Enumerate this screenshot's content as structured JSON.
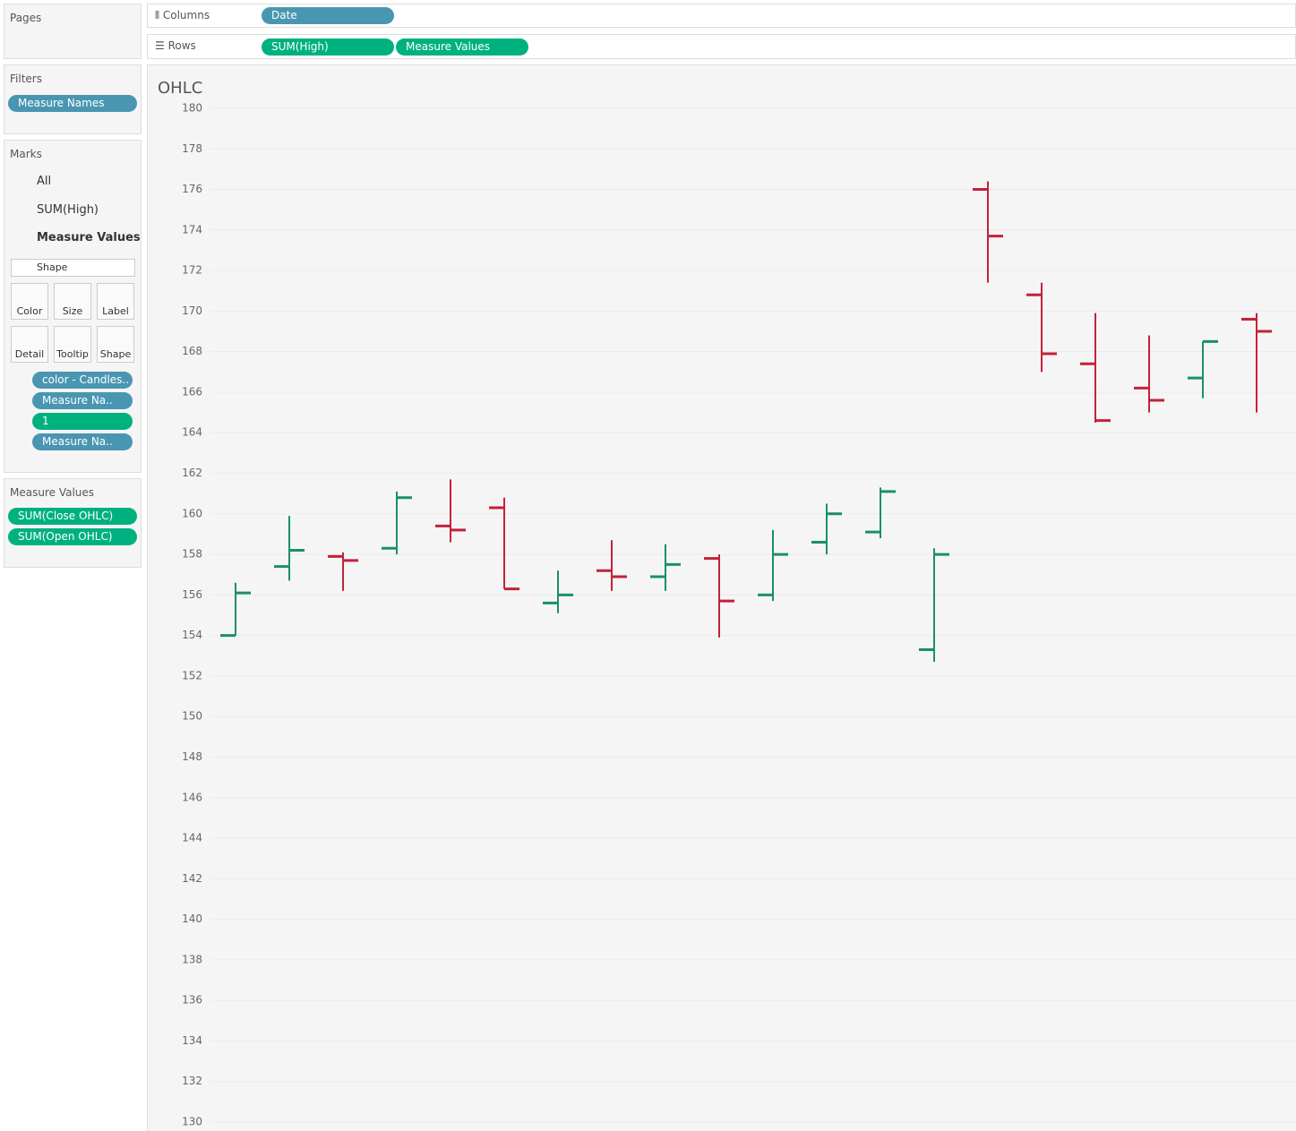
{
  "shelves": {
    "pages": "Pages",
    "columns_label": "Columns",
    "columns": [
      "Date"
    ],
    "rows_label": "Rows",
    "rows": [
      "SUM(High)",
      "Measure Values"
    ]
  },
  "filters": {
    "title": "Filters",
    "pills": [
      "Measure Names"
    ]
  },
  "marks": {
    "title": "Marks",
    "layers": [
      "All",
      "SUM(High)",
      "Measure Values"
    ],
    "mark_type": "Shape",
    "buttons": [
      "Color",
      "Size",
      "Label",
      "Detail",
      "Tooltip",
      "Shape"
    ],
    "pills": [
      "color - Candles..",
      "Measure Na..",
      "1",
      "Measure Na.."
    ]
  },
  "measure_values": {
    "title": "Measure Values",
    "pills": [
      "SUM(Close OHLC)",
      "SUM(Open OHLC)"
    ]
  },
  "chart_data": {
    "type": "ohlc",
    "title": "OHLC",
    "open": [
      154.0,
      157.4,
      157.9,
      158.3,
      159.4,
      160.3,
      155.6,
      157.2,
      156.9,
      157.8,
      156.0,
      158.6,
      159.1,
      153.3,
      176.0,
      170.8,
      167.4,
      166.2,
      166.7,
      169.6
    ],
    "high": [
      156.6,
      159.9,
      158.1,
      161.1,
      161.7,
      160.8,
      157.2,
      158.7,
      158.5,
      158.0,
      159.2,
      160.5,
      161.3,
      158.3,
      176.4,
      171.4,
      169.9,
      168.8,
      168.5,
      169.9
    ],
    "low": [
      154.0,
      156.7,
      156.2,
      158.0,
      158.6,
      156.3,
      155.1,
      156.2,
      156.2,
      153.9,
      155.7,
      158.0,
      158.8,
      152.7,
      171.4,
      167.0,
      164.5,
      165.0,
      165.7,
      165.0
    ],
    "close": [
      156.1,
      158.2,
      157.7,
      160.8,
      159.2,
      156.3,
      156.0,
      156.9,
      157.5,
      155.7,
      158.0,
      160.0,
      161.1,
      158.0,
      173.7,
      167.9,
      164.6,
      165.6,
      168.5,
      169.0
    ],
    "up_color": "#1b8f6a",
    "down_color": "#c4213a",
    "ylim": [
      130,
      180
    ],
    "yticks": [
      130,
      132,
      134,
      136,
      138,
      140,
      142,
      144,
      146,
      148,
      150,
      152,
      154,
      156,
      158,
      160,
      162,
      164,
      166,
      168,
      170,
      172,
      174,
      176,
      178,
      180
    ],
    "grid": true
  }
}
